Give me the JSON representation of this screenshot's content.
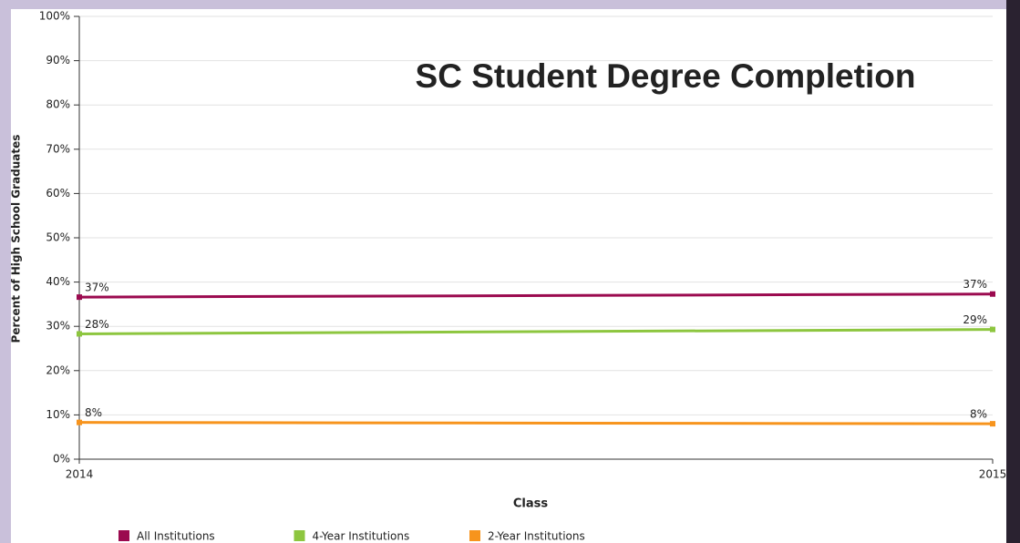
{
  "chart_data": {
    "type": "line",
    "title": "SC Student Degree Completion",
    "xlabel": "Class",
    "ylabel": "Percent of High School Graduates",
    "x": [
      2014,
      2015
    ],
    "xlim": [
      2014,
      2015
    ],
    "xticks": [
      2014,
      2015
    ],
    "ylim": [
      0,
      100
    ],
    "yticks": [
      {
        "value": 0,
        "label": "0%"
      },
      {
        "value": 10,
        "label": "10%"
      },
      {
        "value": 20,
        "label": "20%"
      },
      {
        "value": 30,
        "label": "30%"
      },
      {
        "value": 40,
        "label": "40%"
      },
      {
        "value": 50,
        "label": "50%"
      },
      {
        "value": 60,
        "label": "60%"
      },
      {
        "value": 70,
        "label": "70%"
      },
      {
        "value": 80,
        "label": "80%"
      },
      {
        "value": 90,
        "label": "90%"
      },
      {
        "value": 100,
        "label": "100%"
      }
    ],
    "grid": true,
    "legend": "bottom",
    "series": [
      {
        "name": "All Institutions",
        "color": "#9b0a4f",
        "values": [
          36.6,
          37.3
        ],
        "value_labels": [
          "37%",
          "37%"
        ]
      },
      {
        "name": "4-Year Institutions",
        "color": "#8dc63f",
        "values": [
          28.3,
          29.3
        ],
        "value_labels": [
          "28%",
          "29%"
        ]
      },
      {
        "name": "2-Year Institutions",
        "color": "#f7941d",
        "values": [
          8.3,
          8.0
        ],
        "value_labels": [
          "8%",
          "8%"
        ]
      }
    ]
  }
}
